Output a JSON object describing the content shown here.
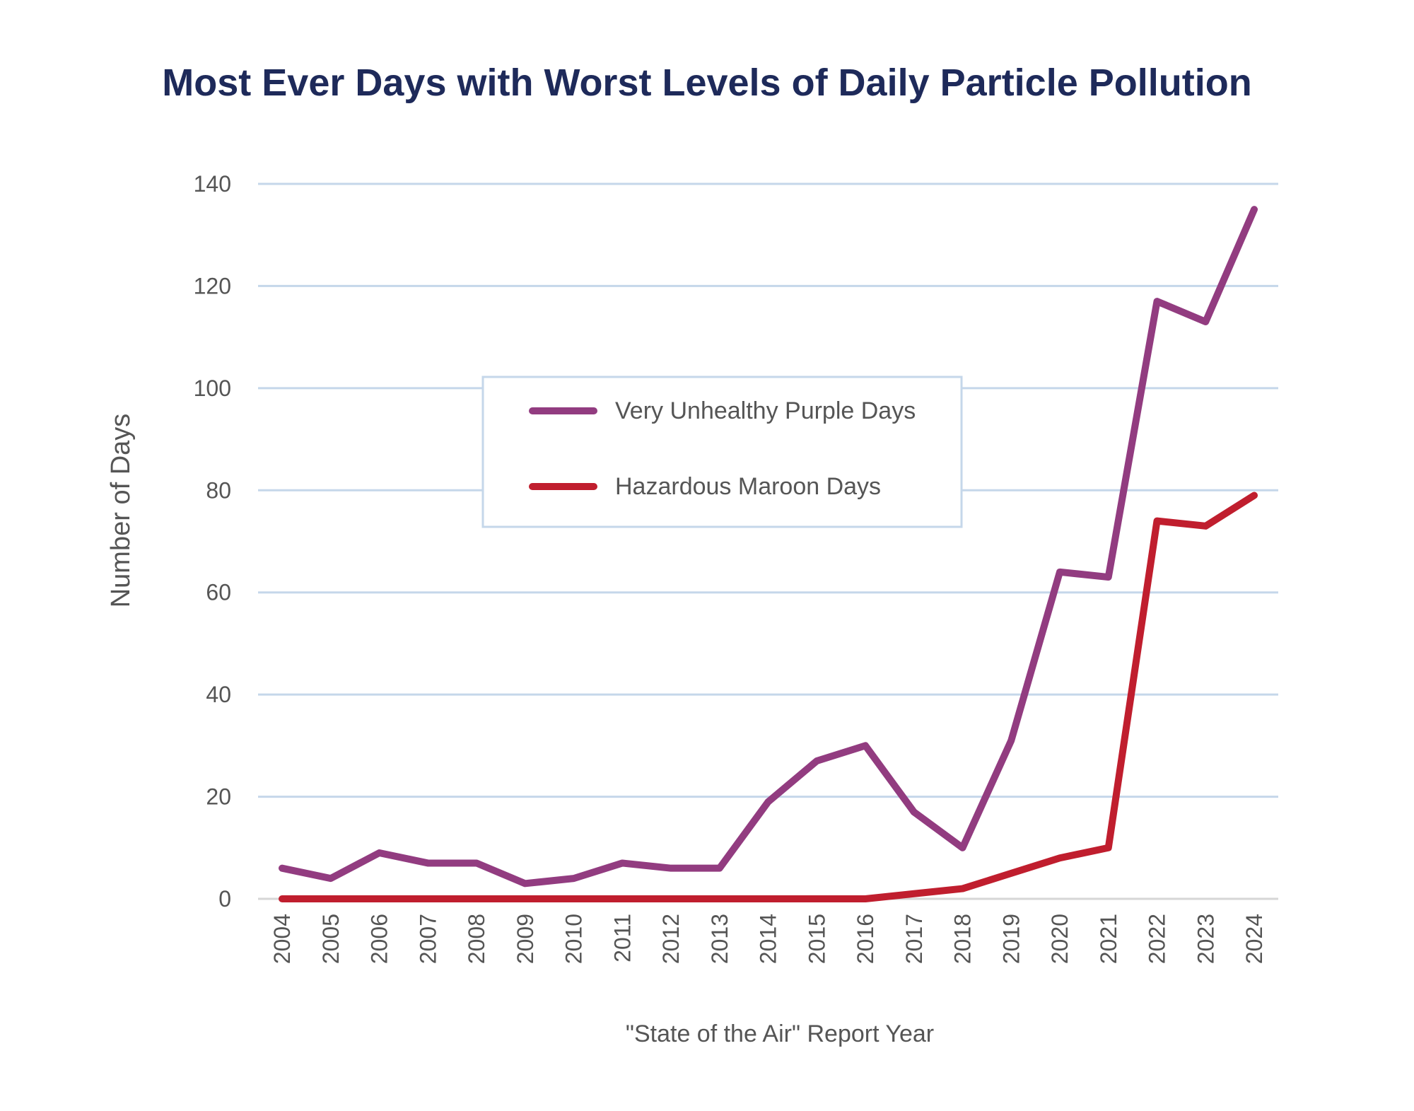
{
  "chart_data": {
    "type": "line",
    "title": "Most Ever Days with Worst Levels of Daily Particle Pollution",
    "xlabel": "\"State of the Air\" Report Year",
    "ylabel": "Number of Days",
    "ylim": [
      0,
      140
    ],
    "yticks": [
      0,
      20,
      40,
      60,
      80,
      100,
      120,
      140
    ],
    "grid": true,
    "legend_position": "center",
    "categories": [
      "2004",
      "2005",
      "2006",
      "2007",
      "2008",
      "2009",
      "2010",
      "2011",
      "2012",
      "2013",
      "2014",
      "2015",
      "2016",
      "2017",
      "2018",
      "2019",
      "2020",
      "2021",
      "2022",
      "2023",
      "2024"
    ],
    "series": [
      {
        "name": "Very Unhealthy Purple Days",
        "color": "#923c80",
        "values": [
          6,
          4,
          9,
          7,
          7,
          3,
          4,
          7,
          6,
          6,
          19,
          27,
          30,
          17,
          10,
          31,
          64,
          63,
          117,
          113,
          135
        ]
      },
      {
        "name": "Hazardous Maroon Days",
        "color": "#c01e2e",
        "values": [
          0,
          0,
          0,
          0,
          0,
          0,
          0,
          0,
          0,
          0,
          0,
          0,
          0,
          1,
          2,
          5,
          8,
          10,
          74,
          73,
          79
        ]
      }
    ],
    "gridline_color": "#c5d7ea",
    "title_color": "#1e2a5a"
  }
}
